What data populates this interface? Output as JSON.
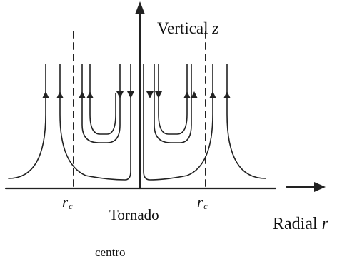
{
  "labels": {
    "vertical_text": "Vertical ",
    "vertical_var": "z",
    "radial_text": "Radial ",
    "radial_var": "r",
    "core_radius_symbol": "r",
    "core_radius_subscript": "c",
    "tornado": "Tornado",
    "centro": "centro"
  },
  "colors": {
    "line": "#222222",
    "background": "#ffffff"
  }
}
